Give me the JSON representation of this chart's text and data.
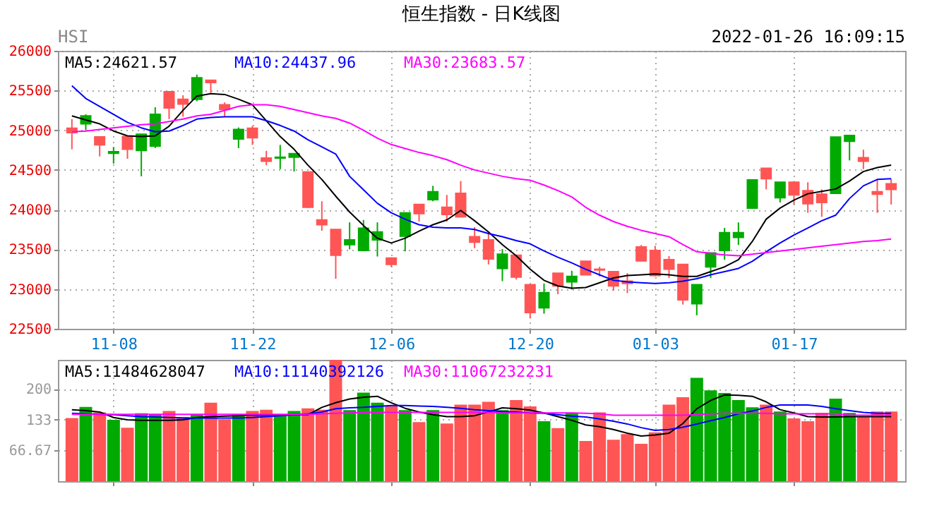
{
  "chart_data": [
    {
      "type": "candlestick",
      "title": "恒生指数 - 日K线图",
      "annotations": [
        "HSI",
        "2022-01-26 16:09:15"
      ],
      "categories": [
        null,
        null,
        null,
        "11-08",
        null,
        null,
        null,
        null,
        null,
        null,
        null,
        null,
        null,
        "11-22",
        null,
        null,
        null,
        null,
        null,
        null,
        null,
        null,
        null,
        "12-06",
        null,
        null,
        null,
        null,
        null,
        null,
        null,
        null,
        null,
        "12-20",
        null,
        null,
        null,
        null,
        null,
        null,
        null,
        null,
        "01-03",
        null,
        null,
        null,
        null,
        null,
        null,
        null,
        null,
        null,
        "01-17",
        null,
        null,
        null,
        null,
        null,
        null,
        null
      ],
      "ohlc": [
        [
          24970,
          25140,
          24760,
          25025
        ],
        [
          25180,
          25200,
          25000,
          25080
        ],
        [
          24817,
          24920,
          24670,
          24917
        ],
        [
          24730,
          24790,
          24580,
          24710
        ],
        [
          24760,
          24930,
          24640,
          24920
        ],
        [
          24950,
          24950,
          24420,
          24745
        ],
        [
          25200,
          25290,
          24775,
          24800
        ],
        [
          25280,
          25485,
          25140,
          25485
        ],
        [
          25330,
          25440,
          25170,
          25390
        ],
        [
          25660,
          25700,
          25365,
          25390
        ],
        [
          25600,
          25630,
          25470,
          25630
        ],
        [
          25260,
          25350,
          25170,
          25320
        ],
        [
          25010,
          25035,
          24775,
          24890
        ],
        [
          24905,
          25055,
          24815,
          25025
        ],
        [
          24610,
          24740,
          24560,
          24650
        ],
        [
          24660,
          24815,
          24510,
          24650
        ],
        [
          24705,
          24705,
          24480,
          24660
        ],
        [
          24030,
          24475,
          24020,
          24475
        ],
        [
          23810,
          24105,
          23735,
          23870
        ],
        [
          23425,
          23750,
          23130,
          23750
        ],
        [
          23620,
          23840,
          23500,
          23560
        ],
        [
          23765,
          23870,
          23475,
          23485
        ],
        [
          23720,
          23840,
          23410,
          23620
        ],
        [
          23310,
          23390,
          23280,
          23390
        ],
        [
          23960,
          23960,
          23475,
          23665
        ],
        [
          23950,
          24065,
          23850,
          24065
        ],
        [
          24225,
          24300,
          24105,
          24125
        ],
        [
          23940,
          24185,
          23850,
          24030
        ],
        [
          23910,
          24360,
          23900,
          24205
        ],
        [
          23590,
          23780,
          23515,
          23660
        ],
        [
          23380,
          23710,
          23310,
          23620
        ],
        [
          23440,
          23505,
          23100,
          23260
        ],
        [
          23150,
          23425,
          23120,
          23425
        ],
        [
          22705,
          23055,
          22630,
          23055
        ],
        [
          22955,
          23070,
          22690,
          22765
        ],
        [
          23040,
          23200,
          22935,
          23200
        ],
        [
          23160,
          23230,
          22995,
          23090
        ],
        [
          23180,
          23350,
          23180,
          23350
        ],
        [
          23240,
          23280,
          23160,
          23250
        ],
        [
          23040,
          23220,
          22980,
          23220
        ],
        [
          23070,
          23200,
          22950,
          23100
        ],
        [
          23355,
          23555,
          23355,
          23530
        ],
        [
          23170,
          23545,
          23160,
          23485
        ],
        [
          23250,
          23415,
          23140,
          23370
        ],
        [
          22865,
          23310,
          22805,
          23310
        ],
        [
          23055,
          23055,
          22670,
          22815
        ],
        [
          23455,
          23455,
          23140,
          23280
        ],
        [
          23710,
          23770,
          23370,
          23485
        ],
        [
          23710,
          23840,
          23555,
          23650
        ],
        [
          24375,
          24375,
          24020,
          24020
        ],
        [
          24390,
          24520,
          24255,
          24520
        ],
        [
          24345,
          24345,
          24090,
          24150
        ],
        [
          24185,
          24360,
          24065,
          24345
        ],
        [
          24075,
          24345,
          23960,
          24240
        ],
        [
          24090,
          24255,
          23910,
          24195
        ],
        [
          24915,
          24915,
          24195,
          24205
        ],
        [
          24935,
          24935,
          24620,
          24860
        ],
        [
          24610,
          24755,
          24510,
          24655
        ],
        [
          24195,
          24385,
          23960,
          24225
        ],
        [
          24255,
          24385,
          24065,
          24325
        ]
      ],
      "colors": [
        "#ff5555",
        "#00aa00",
        "#ff5555",
        "#00aa00",
        "#ff5555",
        "#00aa00",
        "#00aa00",
        "#ff5555",
        "#ff5555",
        "#00aa00",
        "#ff5555",
        "#ff5555",
        "#00aa00",
        "#ff5555",
        "#ff5555",
        "#00aa00",
        "#00aa00",
        "#ff5555",
        "#ff5555",
        "#ff5555",
        "#00aa00",
        "#00aa00",
        "#00aa00",
        "#ff5555",
        "#00aa00",
        "#ff5555",
        "#00aa00",
        "#ff5555",
        "#ff5555",
        "#ff5555",
        "#ff5555",
        "#00aa00",
        "#ff5555",
        "#ff5555",
        "#00aa00",
        "#ff5555",
        "#00aa00",
        "#ff5555",
        "#ff5555",
        "#ff5555",
        "#ff5555",
        "#ff5555",
        "#ff5555",
        "#ff5555",
        "#ff5555",
        "#00aa00",
        "#00aa00",
        "#00aa00",
        "#00aa00",
        "#00aa00",
        "#ff5555",
        "#00aa00",
        "#ff5555",
        "#ff5555",
        "#ff5555",
        "#00aa00",
        "#00aa00",
        "#ff5555",
        "#ff5555",
        "#ff5555"
      ],
      "series": [
        {
          "type": "line",
          "name": "MA5:24621.57",
          "color": "#000000",
          "values": [
            25180,
            25130,
            25080,
            24990,
            24930,
            24920,
            24930,
            25050,
            25250,
            25430,
            25460,
            25450,
            25390,
            25320,
            25120,
            24920,
            24760,
            24560,
            24380,
            24170,
            23970,
            23800,
            23640,
            23580,
            23640,
            23730,
            23810,
            23870,
            23990,
            23860,
            23720,
            23560,
            23420,
            23250,
            23110,
            23040,
            23010,
            23020,
            23080,
            23140,
            23170,
            23180,
            23190,
            23180,
            23160,
            23160,
            23220,
            23280,
            23370,
            23600,
            23880,
            24020,
            24120,
            24200,
            24230,
            24260,
            24360,
            24480,
            24530,
            24560
          ]
        },
        {
          "type": "line",
          "name": "MA10:24437.96",
          "color": "#0000ff",
          "values": [
            25560,
            25400,
            25300,
            25200,
            25100,
            25030,
            24980,
            24990,
            25060,
            25140,
            25160,
            25170,
            25170,
            25170,
            25120,
            25060,
            24990,
            24880,
            24790,
            24700,
            24420,
            24250,
            24080,
            23960,
            23880,
            23810,
            23780,
            23770,
            23770,
            23750,
            23700,
            23660,
            23610,
            23570,
            23480,
            23400,
            23330,
            23250,
            23180,
            23110,
            23090,
            23080,
            23070,
            23080,
            23100,
            23130,
            23180,
            23220,
            23260,
            23350,
            23470,
            23580,
            23680,
            23770,
            23860,
            23930,
            24140,
            24300,
            24380,
            24390
          ]
        },
        {
          "type": "line",
          "name": "MA30:23683.57",
          "color": "#ff00ff",
          "values": [
            24980,
            24990,
            25010,
            25030,
            25050,
            25070,
            25080,
            25110,
            25140,
            25180,
            25200,
            25250,
            25300,
            25320,
            25320,
            25300,
            25260,
            25220,
            25180,
            25150,
            25090,
            25000,
            24900,
            24820,
            24770,
            24720,
            24680,
            24630,
            24560,
            24500,
            24460,
            24420,
            24390,
            24370,
            24310,
            24240,
            24160,
            24030,
            23930,
            23850,
            23790,
            23740,
            23700,
            23660,
            23560,
            23470,
            23450,
            23430,
            23420,
            23440,
            23460,
            23480,
            23500,
            23520,
            23540,
            23560,
            23580,
            23600,
            23610,
            23630
          ]
        }
      ],
      "ylim": [
        22500,
        26000
      ],
      "yticks": [
        22500,
        23000,
        23500,
        24000,
        24500,
        25000,
        25500,
        26000
      ],
      "grid": true,
      "legend": "top left"
    },
    {
      "type": "bar",
      "tick_labels": "y",
      "categories": [
        null,
        null,
        null,
        null,
        null,
        null,
        null,
        null,
        null,
        null,
        null,
        null,
        null,
        null,
        null,
        null,
        null,
        null,
        null,
        null,
        null,
        null,
        null,
        null,
        null,
        null,
        null,
        null,
        null,
        null,
        null,
        null,
        null,
        null,
        null,
        null,
        null,
        null,
        null,
        null,
        null,
        null,
        null,
        null,
        null,
        null,
        null,
        null,
        null,
        null,
        null,
        null,
        null,
        null,
        null,
        null,
        null,
        null,
        null,
        null
      ],
      "series": [
        {
          "values": [
            137,
            161,
            149,
            133,
            116,
            147,
            144,
            152,
            139,
            144,
            170,
            134,
            144,
            152,
            155,
            142,
            152,
            158,
            155,
            263,
            154,
            192,
            170,
            164,
            154,
            128,
            154,
            125,
            166,
            166,
            172,
            154,
            176,
            162,
            130,
            115,
            147,
            87,
            149,
            90,
            102,
            81,
            106,
            166,
            182,
            224,
            197,
            191,
            176,
            160,
            166,
            151,
            136,
            130,
            148,
            179,
            148,
            139,
            151,
            151
          ],
          "colors": [
            "#ff5555",
            "#00aa00",
            "#ff5555",
            "#00aa00",
            "#ff5555",
            "#00aa00",
            "#00aa00",
            "#ff5555",
            "#ff5555",
            "#00aa00",
            "#ff5555",
            "#ff5555",
            "#00aa00",
            "#ff5555",
            "#ff5555",
            "#00aa00",
            "#00aa00",
            "#ff5555",
            "#ff5555",
            "#ff5555",
            "#00aa00",
            "#00aa00",
            "#00aa00",
            "#ff5555",
            "#00aa00",
            "#ff5555",
            "#00aa00",
            "#ff5555",
            "#ff5555",
            "#ff5555",
            "#ff5555",
            "#00aa00",
            "#ff5555",
            "#ff5555",
            "#00aa00",
            "#ff5555",
            "#00aa00",
            "#ff5555",
            "#ff5555",
            "#ff5555",
            "#ff5555",
            "#ff5555",
            "#ff5555",
            "#ff5555",
            "#ff5555",
            "#00aa00",
            "#00aa00",
            "#00aa00",
            "#00aa00",
            "#00aa00",
            "#ff5555",
            "#00aa00",
            "#ff5555",
            "#ff5555",
            "#ff5555",
            "#00aa00",
            "#00aa00",
            "#ff5555",
            "#ff5555",
            "#ff5555"
          ]
        },
        {
          "type": "line",
          "name": "MA5:11484628047",
          "color": "#000000",
          "values": [
            155,
            153,
            150,
            138,
            133,
            132,
            132,
            132,
            133,
            138,
            140,
            141,
            142,
            143,
            143,
            143,
            144,
            144,
            160,
            170,
            178,
            182,
            184,
            170,
            158,
            150,
            144,
            140,
            140,
            142,
            150,
            159,
            157,
            154,
            148,
            140,
            132,
            122,
            118,
            112,
            104,
            98,
            100,
            104,
            125,
            157,
            175,
            187,
            186,
            184,
            172,
            155,
            148,
            140,
            139,
            139,
            140,
            140,
            140,
            140
          ]
        },
        {
          "type": "line",
          "name": "MA10:11140392126",
          "color": "#0000ff",
          "values": [
            147,
            146,
            145,
            144,
            142,
            140,
            139,
            138,
            137,
            137,
            137,
            137,
            137,
            138,
            140,
            142,
            144,
            146,
            150,
            157,
            159,
            160,
            162,
            164,
            164,
            163,
            162,
            160,
            158,
            155,
            153,
            151,
            150,
            148,
            147,
            144,
            141,
            139,
            135,
            130,
            124,
            116,
            110,
            112,
            117,
            124,
            131,
            138,
            146,
            152,
            160,
            165,
            165,
            165,
            162,
            157,
            153,
            149,
            147,
            147
          ]
        },
        {
          "type": "line",
          "name": "MA30:11067232231",
          "color": "#ff00ff",
          "values": [
            145,
            145,
            145,
            145,
            145,
            145,
            145,
            145,
            145,
            145,
            145,
            145,
            145,
            145,
            145,
            145,
            145,
            145,
            146,
            147,
            148,
            149,
            149,
            149,
            149,
            149,
            149,
            149,
            149,
            149,
            149,
            148,
            148,
            148,
            148,
            148,
            148,
            147,
            146,
            143,
            143,
            143,
            143,
            143,
            143,
            144,
            146,
            147,
            147,
            147,
            147,
            146,
            146,
            146,
            146,
            146,
            143,
            143,
            143,
            143
          ]
        }
      ],
      "ylim": [
        0,
        263
      ],
      "yticks": [
        {
          "value": 66.67,
          "label": "66.67"
        },
        {
          "value": 133.33,
          "label": "133"
        },
        200
      ],
      "grid": true,
      "legend": "top left"
    }
  ]
}
